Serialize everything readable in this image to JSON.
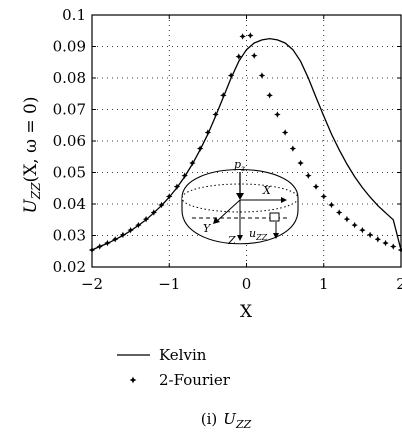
{
  "chart_data": {
    "type": "line",
    "xlabel": "X",
    "ylabel_main": "U",
    "ylabel_sub": "ZZ",
    "ylabel_args": "(X, ω = 0)",
    "xlim": [
      -2,
      2
    ],
    "ylim": [
      0.02,
      0.1
    ],
    "xticks": [
      -2,
      -1,
      0,
      1,
      2
    ],
    "xtick_labels": [
      "−2",
      "−1",
      "0",
      "1",
      "2"
    ],
    "yticks": [
      0.02,
      0.03,
      0.04,
      0.05,
      0.06,
      0.07,
      0.08,
      0.09,
      0.1
    ],
    "ytick_labels": [
      "0.02",
      "0.03",
      "0.04",
      "0.05",
      "0.06",
      "0.07",
      "0.08",
      "0.09",
      "0.1"
    ],
    "grid": true,
    "grid_style": "dotted",
    "legend": {
      "placement": "below-chart",
      "entries": [
        {
          "label": "Kelvin",
          "marker": "line"
        },
        {
          "label": "2-Fourier",
          "marker": "star"
        }
      ]
    },
    "series": [
      {
        "name": "Kelvin",
        "style": "solid-line",
        "x": [
          -2.0,
          -1.9,
          -1.8,
          -1.7,
          -1.6,
          -1.5,
          -1.4,
          -1.3,
          -1.2,
          -1.1,
          -1.0,
          -0.9,
          -0.8,
          -0.7,
          -0.6,
          -0.5,
          -0.4,
          -0.3,
          -0.2,
          -0.1,
          0.0,
          0.1,
          0.2,
          0.3,
          0.4,
          0.5,
          0.6,
          0.7,
          0.8,
          0.9,
          1.0,
          1.1,
          1.2,
          1.3,
          1.4,
          1.5,
          1.6,
          1.7,
          1.8,
          1.9,
          2.0
        ],
        "y": [
          0.0254,
          0.0265,
          0.0275,
          0.0287,
          0.03,
          0.0315,
          0.0332,
          0.035,
          0.0372,
          0.0395,
          0.0422,
          0.0452,
          0.0487,
          0.0527,
          0.0572,
          0.0622,
          0.0679,
          0.0739,
          0.08,
          0.0853,
          0.089,
          0.0911,
          0.0921,
          0.0925,
          0.0921,
          0.0911,
          0.089,
          0.0853,
          0.08,
          0.0739,
          0.0679,
          0.0622,
          0.0572,
          0.0527,
          0.0487,
          0.0452,
          0.0422,
          0.0395,
          0.0372,
          0.035,
          0.0254
        ]
      },
      {
        "name": "2-Fourier",
        "style": "star-markers",
        "x": [
          -2.0,
          -1.9,
          -1.8,
          -1.7,
          -1.6,
          -1.5,
          -1.4,
          -1.3,
          -1.2,
          -1.1,
          -1.0,
          -0.9,
          -0.8,
          -0.7,
          -0.6,
          -0.5,
          -0.4,
          -0.3,
          -0.2,
          -0.1,
          -0.05,
          0.05,
          0.1,
          0.2,
          0.3,
          0.4,
          0.5,
          0.6,
          0.7,
          0.8,
          0.9,
          1.0,
          1.1,
          1.2,
          1.3,
          1.4,
          1.5,
          1.6,
          1.7,
          1.8,
          1.9,
          2.0
        ],
        "y": [
          0.0254,
          0.0265,
          0.0276,
          0.0288,
          0.0302,
          0.0317,
          0.0333,
          0.0352,
          0.0373,
          0.0397,
          0.0424,
          0.0455,
          0.049,
          0.053,
          0.0576,
          0.0627,
          0.0684,
          0.0745,
          0.0808,
          0.0868,
          0.0932,
          0.0935,
          0.0871,
          0.0808,
          0.0745,
          0.0684,
          0.0627,
          0.0576,
          0.053,
          0.049,
          0.0455,
          0.0424,
          0.0397,
          0.0373,
          0.0352,
          0.0333,
          0.0317,
          0.0302,
          0.0288,
          0.0276,
          0.0265,
          0.0254
        ]
      }
    ]
  },
  "inset": {
    "labels": {
      "pz_main": "p",
      "pz_sub": "z",
      "x": "X",
      "y": "Y",
      "z": "Z",
      "uzz_main": "u",
      "uzz_sub": "ZZ"
    }
  },
  "caption": {
    "prefix": "(i)",
    "main": "U",
    "sub": "ZZ"
  }
}
